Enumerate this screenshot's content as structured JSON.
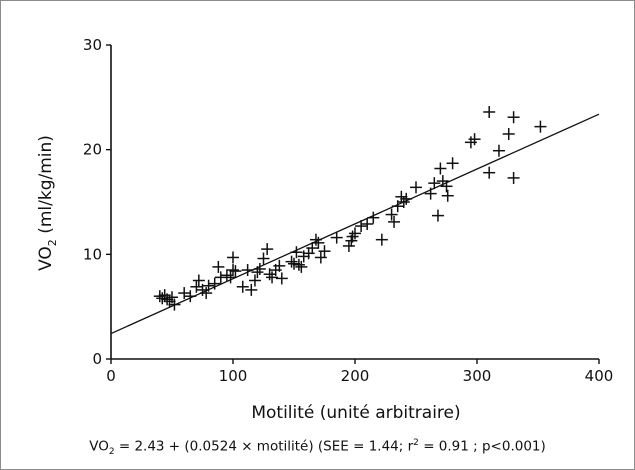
{
  "chart_data": {
    "type": "scatter",
    "title": "",
    "xlabel": "Motilité (unité arbitraire)",
    "ylabel": {
      "prefix": "VO",
      "sub": "2",
      "suffix": " (ml/kg/min)"
    },
    "xlim": [
      0,
      400
    ],
    "ylim": [
      0,
      30
    ],
    "xticks": [
      0,
      100,
      200,
      300,
      400
    ],
    "yticks": [
      0,
      10,
      20,
      30
    ],
    "grid": false,
    "marker": "plus",
    "regression": {
      "intercept": 2.43,
      "slope": 0.0524
    },
    "points": [
      [
        40,
        6.0
      ],
      [
        42,
        5.8
      ],
      [
        44,
        6.1
      ],
      [
        46,
        5.7
      ],
      [
        48,
        5.5
      ],
      [
        50,
        5.9
      ],
      [
        52,
        5.2
      ],
      [
        60,
        6.3
      ],
      [
        65,
        6.0
      ],
      [
        70,
        6.9
      ],
      [
        72,
        7.5
      ],
      [
        75,
        6.6
      ],
      [
        78,
        6.3
      ],
      [
        80,
        7.0
      ],
      [
        85,
        7.2
      ],
      [
        88,
        8.8
      ],
      [
        90,
        7.8
      ],
      [
        95,
        8.0
      ],
      [
        98,
        7.8
      ],
      [
        100,
        9.7
      ],
      [
        100,
        8.5
      ],
      [
        102,
        8.4
      ],
      [
        108,
        6.9
      ],
      [
        112,
        8.5
      ],
      [
        115,
        6.6
      ],
      [
        118,
        7.5
      ],
      [
        120,
        8.3
      ],
      [
        122,
        8.6
      ],
      [
        125,
        9.6
      ],
      [
        128,
        10.5
      ],
      [
        130,
        8.1
      ],
      [
        132,
        7.8
      ],
      [
        135,
        8.5
      ],
      [
        138,
        8.9
      ],
      [
        140,
        7.7
      ],
      [
        148,
        9.3
      ],
      [
        150,
        9.1
      ],
      [
        152,
        10.2
      ],
      [
        154,
        9.0
      ],
      [
        156,
        8.8
      ],
      [
        158,
        9.8
      ],
      [
        162,
        10.1
      ],
      [
        165,
        10.6
      ],
      [
        168,
        11.4
      ],
      [
        170,
        11.1
      ],
      [
        172,
        9.7
      ],
      [
        175,
        10.3
      ],
      [
        185,
        11.6
      ],
      [
        195,
        10.8
      ],
      [
        197,
        11.3
      ],
      [
        198,
        11.7
      ],
      [
        200,
        12.0
      ],
      [
        205,
        12.7
      ],
      [
        210,
        12.9
      ],
      [
        215,
        13.5
      ],
      [
        222,
        11.4
      ],
      [
        230,
        13.8
      ],
      [
        232,
        13.1
      ],
      [
        235,
        14.6
      ],
      [
        238,
        15.5
      ],
      [
        240,
        15.0
      ],
      [
        242,
        15.3
      ],
      [
        250,
        16.4
      ],
      [
        262,
        15.8
      ],
      [
        265,
        16.8
      ],
      [
        268,
        13.7
      ],
      [
        270,
        18.2
      ],
      [
        272,
        17.0
      ],
      [
        275,
        16.5
      ],
      [
        276,
        15.6
      ],
      [
        280,
        18.7
      ],
      [
        295,
        20.7
      ],
      [
        298,
        21.0
      ],
      [
        310,
        23.6
      ],
      [
        310,
        17.8
      ],
      [
        318,
        19.9
      ],
      [
        326,
        21.5
      ],
      [
        330,
        23.1
      ],
      [
        330,
        17.3
      ],
      [
        352,
        22.2
      ]
    ]
  },
  "formula": {
    "vo": "VO",
    "sub": "2",
    "eq": " = 2.43 + (0.0524 × motilité) (SEE = 1.44; r",
    "sup": "2",
    "rest": " = 0.91 ; p<0.001)"
  }
}
